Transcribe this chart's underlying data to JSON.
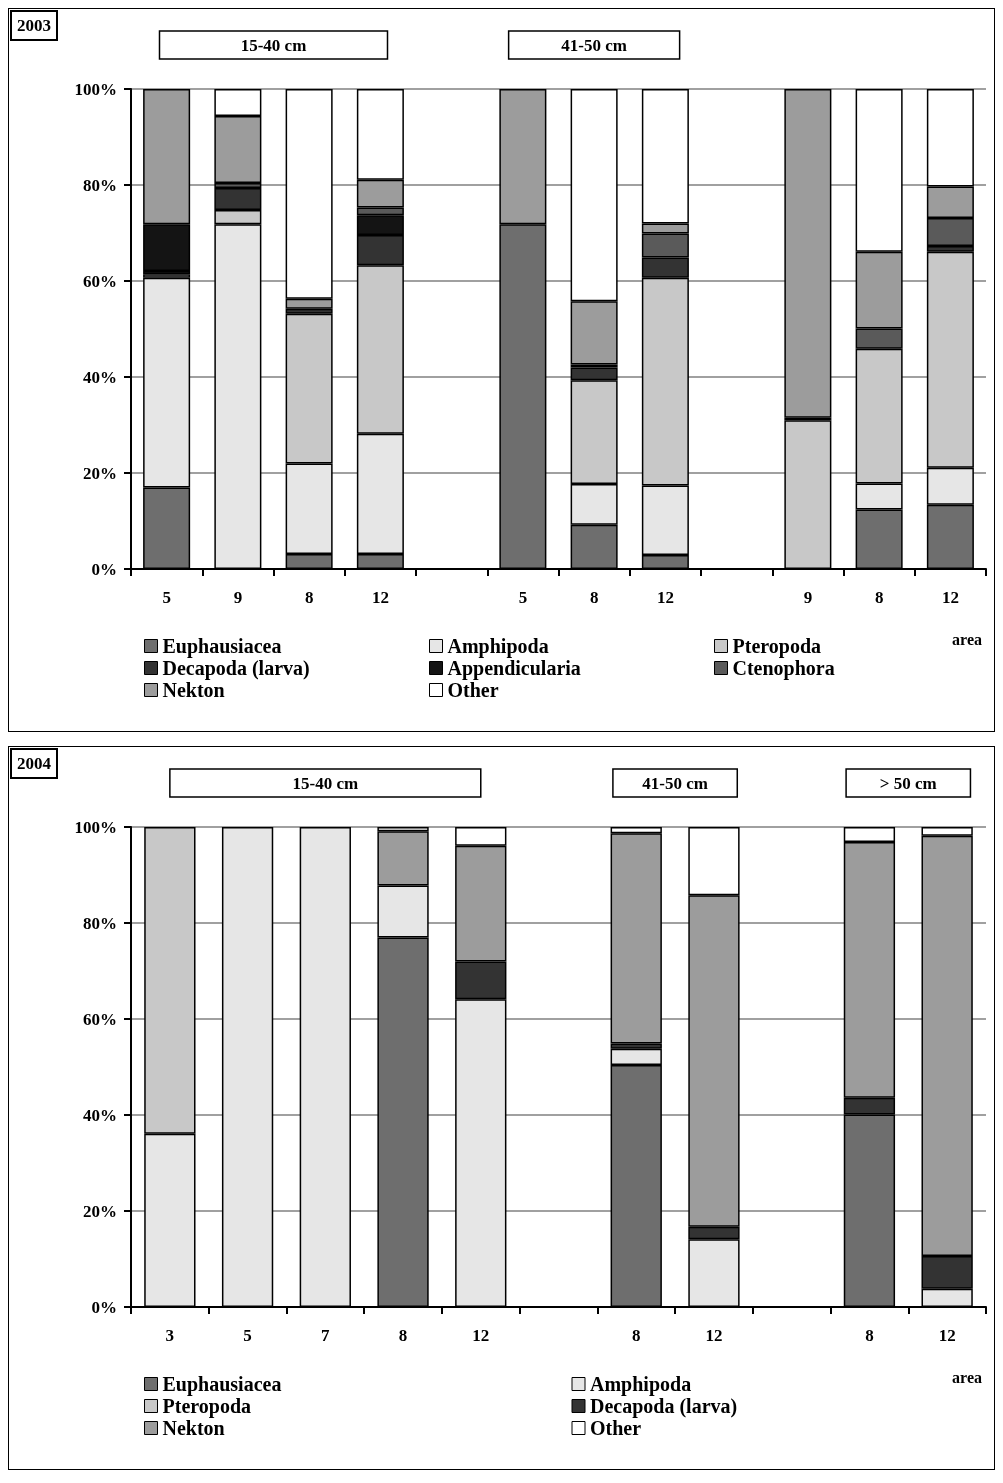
{
  "chart_data": [
    {
      "type": "bar",
      "title": "2003",
      "xlabel": "area",
      "stacked": true,
      "grid": "y",
      "legend": "bottom",
      "categories": [
        "5",
        "9",
        "8",
        "12",
        null,
        "5",
        "8",
        "12",
        null,
        "9",
        "8",
        "12"
      ],
      "annotations": [
        "15-40 cm",
        "41-50 cm"
      ],
      "ylim": [
        0,
        100
      ],
      "yticks": [
        {
          "value": 0,
          "label": "0%"
        },
        {
          "value": 20,
          "label": "20%"
        },
        {
          "value": 40,
          "label": "40%"
        },
        {
          "value": 60,
          "label": "60%"
        },
        {
          "value": 80,
          "label": "80%"
        },
        {
          "value": 100,
          "label": "100%"
        }
      ],
      "series": [
        {
          "name": "Euphausiacea",
          "color": "#6e6e6e",
          "values": [
            17.0,
            0,
            3.1,
            3.1,
            null,
            71.8,
            9.2,
            2.9,
            null,
            0,
            12.4,
            13.4
          ]
        },
        {
          "name": "Amphipoda",
          "color": "#e6e6e6",
          "values": [
            43.7,
            71.8,
            18.9,
            25.1,
            null,
            0,
            8.5,
            14.5,
            null,
            0,
            5.4,
            7.7
          ]
        },
        {
          "name": "Pteropoda",
          "color": "#c8c8c8",
          "values": [
            0.7,
            3.0,
            31.2,
            35.1,
            null,
            0,
            21.6,
            43.3,
            null,
            31.0,
            28.1,
            45.0
          ]
        },
        {
          "name": "Decapoda (larva)",
          "color": "#333333",
          "values": [
            0.7,
            4.6,
            1.0,
            6.3,
            null,
            0,
            2.7,
            4.2,
            null,
            0.5,
            0,
            1.2
          ]
        },
        {
          "name": "Appendicularia",
          "color": "#141414",
          "values": [
            9.7,
            0,
            0,
            4.1,
            null,
            0,
            0,
            0,
            null,
            0,
            0,
            0
          ]
        },
        {
          "name": "Ctenophora",
          "color": "#5a5a5a",
          "values": [
            0,
            1.0,
            0,
            1.6,
            null,
            0,
            0.6,
            5.0,
            null,
            0,
            4.2,
            5.8
          ]
        },
        {
          "name": "Nekton",
          "color": "#9c9c9c",
          "values": [
            28.2,
            14.0,
            2.1,
            5.8,
            null,
            28.2,
            13.2,
            2.1,
            null,
            68.5,
            16.0,
            6.6
          ]
        },
        {
          "name": "Other",
          "color": "#ffffff",
          "values": [
            0,
            5.6,
            43.7,
            18.9,
            null,
            0,
            44.2,
            28.0,
            null,
            0,
            33.9,
            20.3
          ]
        }
      ]
    },
    {
      "type": "bar",
      "title": "2004",
      "xlabel": "area",
      "stacked": true,
      "grid": "y",
      "legend": "bottom",
      "categories": [
        "3",
        "5",
        "7",
        "8",
        "12",
        null,
        "8",
        "12",
        null,
        "8",
        "12"
      ],
      "annotations": [
        "15-40 cm",
        "41-50 cm",
        "> 50 cm"
      ],
      "ylim": [
        0,
        100
      ],
      "yticks": [
        {
          "value": 0,
          "label": "0%"
        },
        {
          "value": 20,
          "label": "20%"
        },
        {
          "value": 40,
          "label": "40%"
        },
        {
          "value": 60,
          "label": "60%"
        },
        {
          "value": 80,
          "label": "80%"
        },
        {
          "value": 100,
          "label": "100%"
        }
      ],
      "series": [
        {
          "name": "Euphausiacea",
          "color": "#6e6e6e",
          "values": [
            0,
            0,
            0,
            77.0,
            0,
            null,
            50.4,
            0,
            null,
            40.1,
            0
          ]
        },
        {
          "name": "Amphipoda",
          "color": "#e6e6e6",
          "values": [
            36.1,
            100,
            100,
            10.8,
            64.1,
            null,
            3.4,
            14.1,
            null,
            0,
            3.8
          ]
        },
        {
          "name": "Pteropoda",
          "color": "#c8c8c8",
          "values": [
            63.9,
            0,
            0,
            0,
            0,
            null,
            0,
            0,
            null,
            0,
            0
          ]
        },
        {
          "name": "Decapoda (larva)",
          "color": "#333333",
          "values": [
            0,
            0,
            0,
            0,
            7.9,
            null,
            1.1,
            2.6,
            null,
            3.5,
            6.8
          ]
        },
        {
          "name": "Nekton",
          "color": "#9c9c9c",
          "values": [
            0,
            0,
            0,
            11.3,
            24.1,
            null,
            43.8,
            69.1,
            null,
            53.3,
            87.6
          ]
        },
        {
          "name": "Other",
          "color": "#ffffff",
          "values": [
            0,
            0,
            0,
            0.9,
            3.9,
            null,
            1.3,
            14.2,
            null,
            3.1,
            1.8
          ]
        }
      ]
    }
  ]
}
